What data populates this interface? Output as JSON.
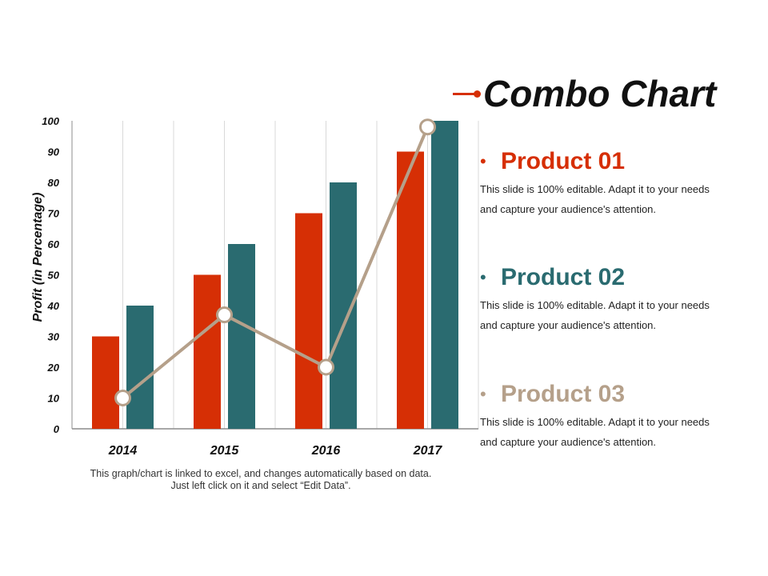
{
  "title": "Combo Chart",
  "accent_color": "#d62f05",
  "chart_data": {
    "type": "bar",
    "categories": [
      "2014",
      "2015",
      "2016",
      "2017"
    ],
    "series": [
      {
        "values": [
          30,
          50,
          70,
          90
        ],
        "color": "#d62f05",
        "kind": "bar"
      },
      {
        "values": [
          40,
          60,
          80,
          100
        ],
        "color": "#2a6b70",
        "kind": "bar"
      },
      {
        "values": [
          10,
          37,
          20,
          98
        ],
        "color": "#b5a08a",
        "kind": "line"
      }
    ],
    "ylabel": "Profit (in Percentage)",
    "xlabel": "",
    "ylim": [
      0,
      100
    ],
    "yticks": [
      "0",
      "10",
      "20",
      "30",
      "40",
      "50",
      "60",
      "70",
      "80",
      "90",
      "100"
    ],
    "grid": "vertical",
    "footnote": "This graph/chart is linked to excel, and changes automatically based on data. Just left click on it and select “Edit Data”."
  },
  "products": [
    {
      "name": "Product 01",
      "color": "#d62f05",
      "description": "This slide is 100% editable. Adapt it to your needs and capture your audience's attention."
    },
    {
      "name": "Product 02",
      "color": "#2a6b70",
      "description": "This slide is 100% editable. Adapt it to your needs and capture your audience's attention."
    },
    {
      "name": "Product 03",
      "color": "#b5a08a",
      "description": "This slide is 100% editable. Adapt it to your needs and capture your audience's attention."
    }
  ]
}
